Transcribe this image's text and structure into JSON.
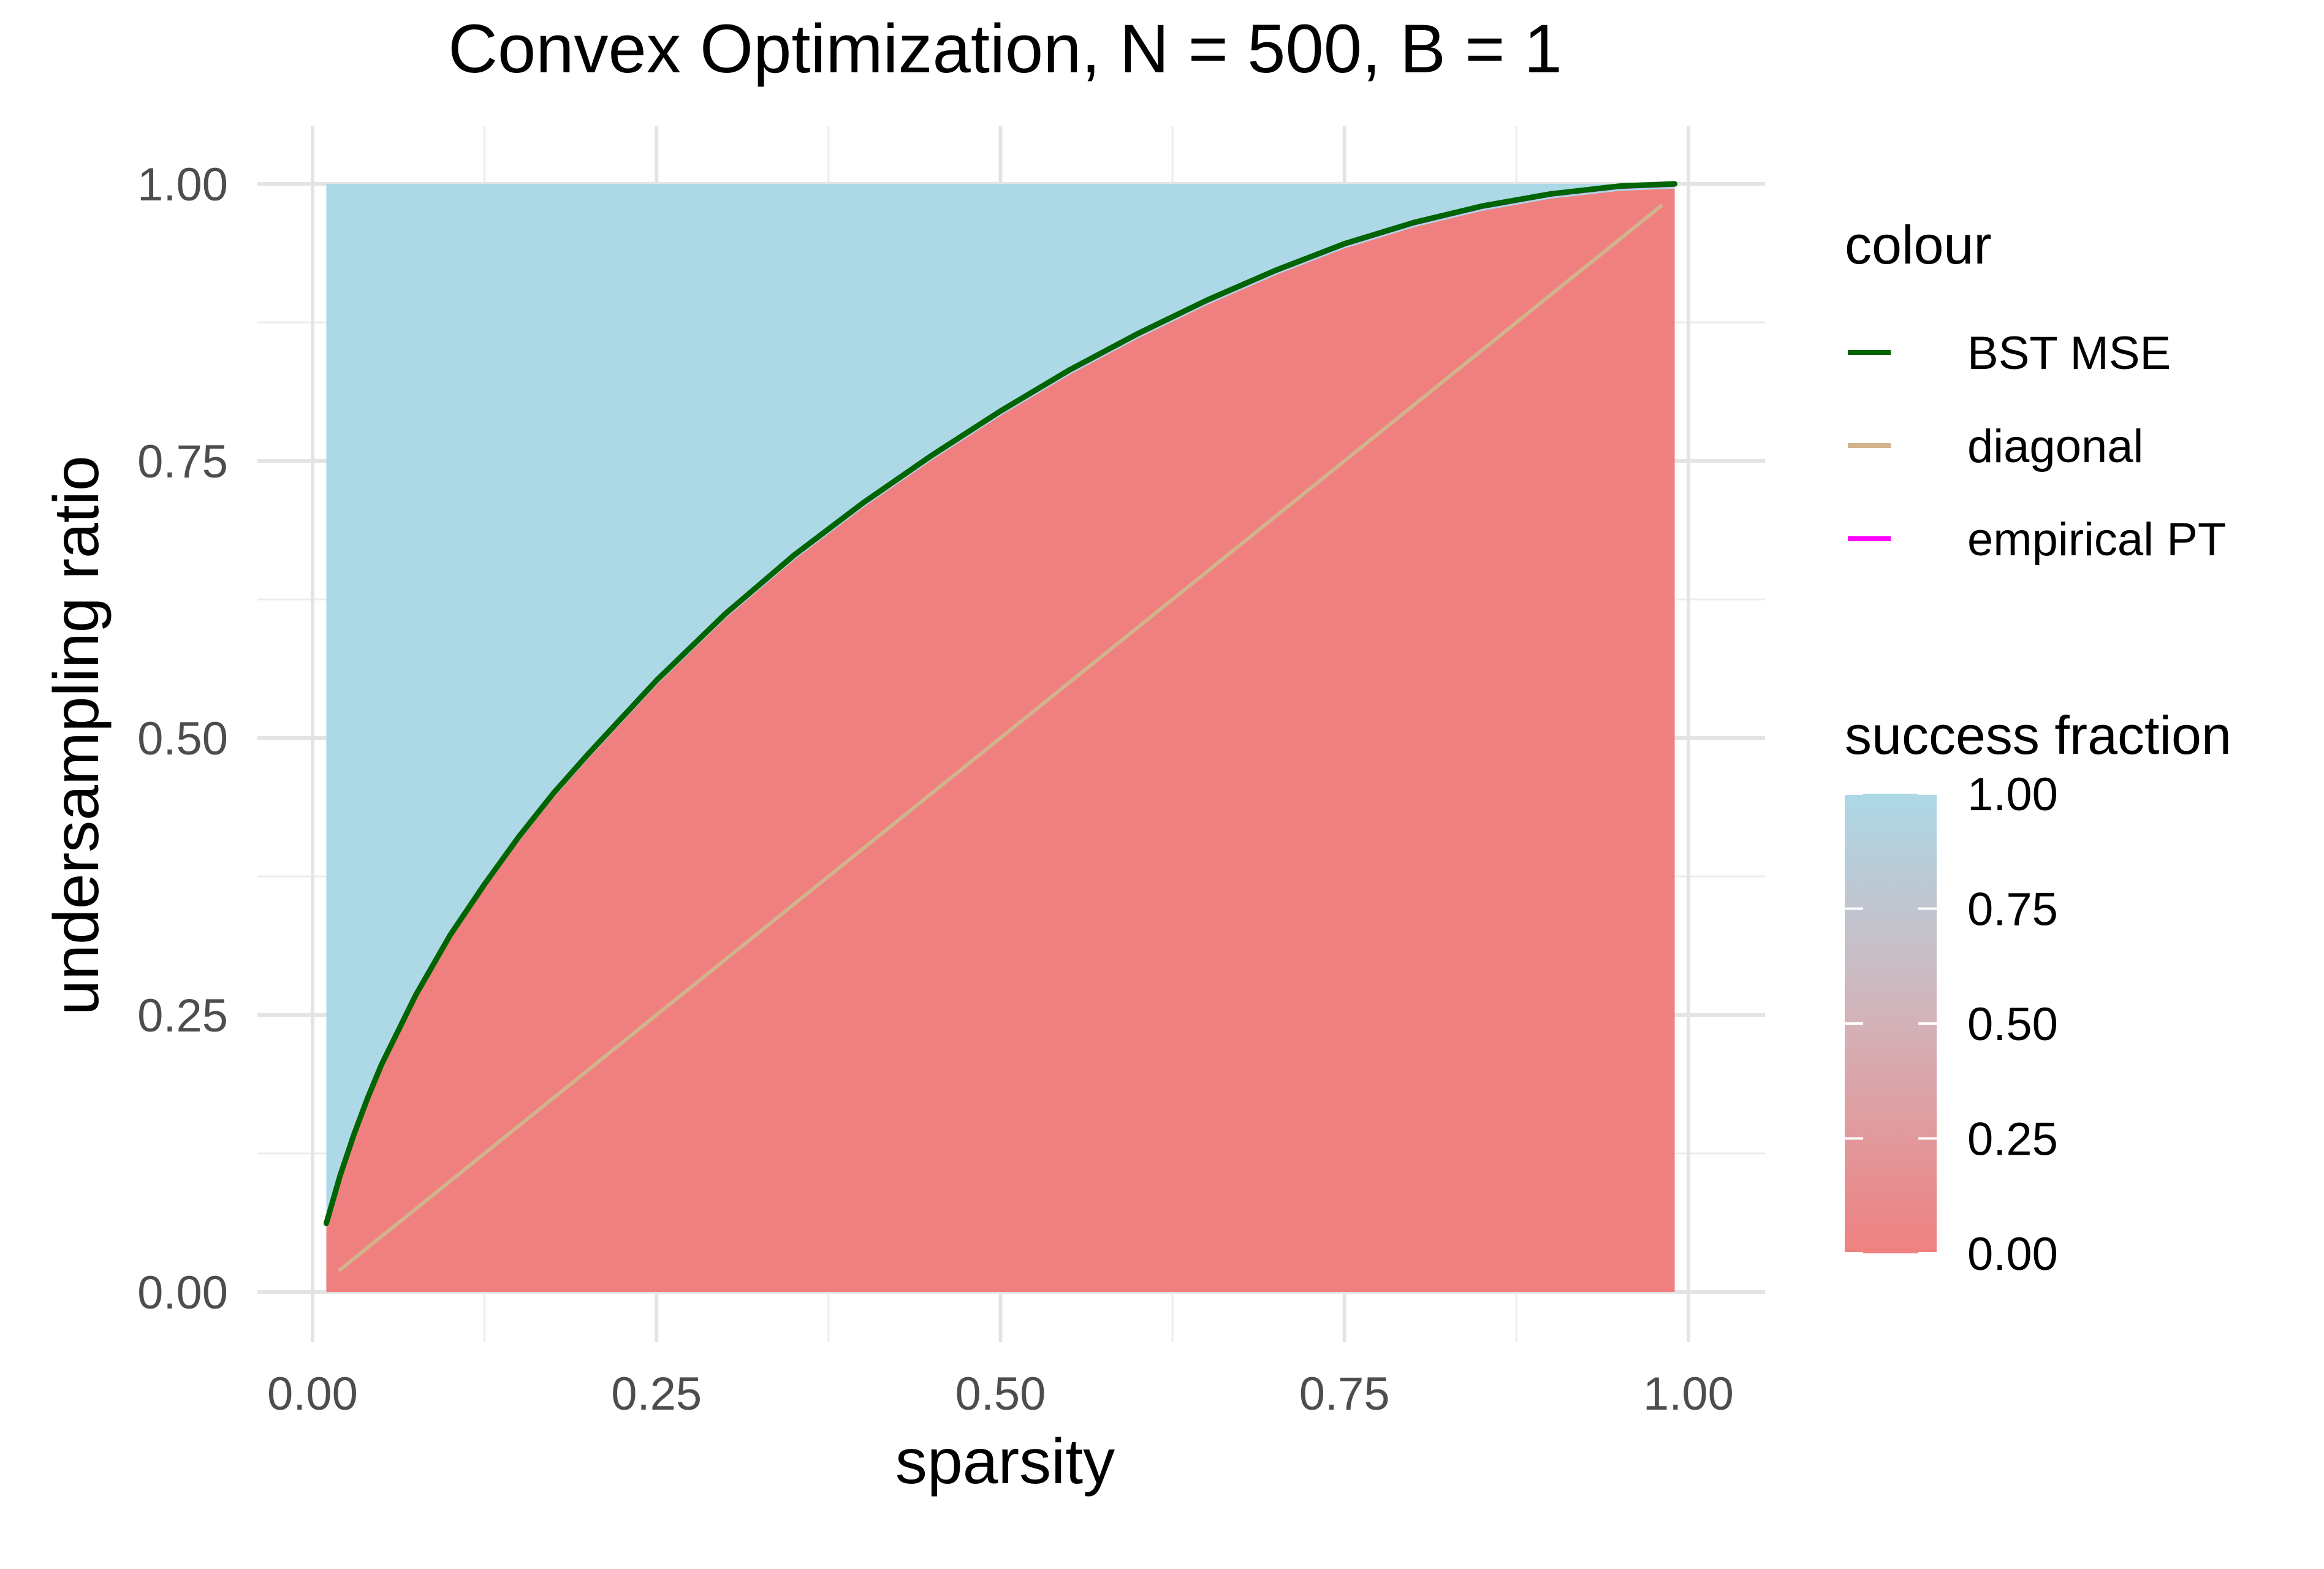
{
  "chart_data": {
    "type": "heatmap",
    "title": "Convex Optimization, N = 500, B = 1",
    "xlabel": "sparsity",
    "ylabel": "undersampling ratio",
    "xlim": [
      0,
      1
    ],
    "ylim": [
      0,
      1
    ],
    "x_ticks": [
      {
        "value": 0.0,
        "label": "0.00"
      },
      {
        "value": 0.25,
        "label": "0.25"
      },
      {
        "value": 0.5,
        "label": "0.50"
      },
      {
        "value": 0.75,
        "label": "0.75"
      },
      {
        "value": 1.0,
        "label": "1.00"
      }
    ],
    "y_ticks": [
      {
        "value": 0.0,
        "label": "0.00"
      },
      {
        "value": 0.25,
        "label": "0.25"
      },
      {
        "value": 0.5,
        "label": "0.50"
      },
      {
        "value": 0.75,
        "label": "0.75"
      },
      {
        "value": 1.0,
        "label": "1.00"
      }
    ],
    "grid": true,
    "legend_position": "right",
    "heatmap": {
      "x_range": [
        0.01,
        0.99
      ],
      "y_range": [
        0.0,
        1.0
      ],
      "low_color": "#F08080",
      "high_color": "#ADD8E6",
      "value_name": "success fraction"
    },
    "series": [
      {
        "name": "BST MSE",
        "color": "#006400",
        "points": [
          [
            0.01,
            0.062
          ],
          [
            0.02,
            0.105
          ],
          [
            0.03,
            0.142
          ],
          [
            0.04,
            0.175
          ],
          [
            0.05,
            0.205
          ],
          [
            0.075,
            0.268
          ],
          [
            0.1,
            0.322
          ],
          [
            0.125,
            0.368
          ],
          [
            0.15,
            0.411
          ],
          [
            0.175,
            0.45
          ],
          [
            0.2,
            0.485
          ],
          [
            0.25,
            0.552
          ],
          [
            0.3,
            0.612
          ],
          [
            0.35,
            0.665
          ],
          [
            0.4,
            0.712
          ],
          [
            0.45,
            0.755
          ],
          [
            0.5,
            0.795
          ],
          [
            0.55,
            0.832
          ],
          [
            0.6,
            0.865
          ],
          [
            0.65,
            0.895
          ],
          [
            0.7,
            0.922
          ],
          [
            0.75,
            0.946
          ],
          [
            0.8,
            0.965
          ],
          [
            0.85,
            0.98
          ],
          [
            0.9,
            0.991
          ],
          [
            0.95,
            0.998
          ],
          [
            0.99,
            1.0
          ]
        ]
      },
      {
        "name": "diagonal",
        "color": "#D2B48C",
        "points": [
          [
            0.02,
            0.02
          ],
          [
            0.98,
            0.98
          ]
        ]
      },
      {
        "name": "empirical PT",
        "color": "#FF00FF",
        "points": [
          [
            0.01,
            0.061
          ],
          [
            0.02,
            0.104
          ],
          [
            0.03,
            0.141
          ],
          [
            0.04,
            0.174
          ],
          [
            0.05,
            0.204
          ],
          [
            0.075,
            0.267
          ],
          [
            0.1,
            0.321
          ],
          [
            0.125,
            0.367
          ],
          [
            0.15,
            0.41
          ],
          [
            0.175,
            0.449
          ],
          [
            0.2,
            0.484
          ],
          [
            0.25,
            0.551
          ],
          [
            0.3,
            0.611
          ],
          [
            0.35,
            0.664
          ],
          [
            0.4,
            0.711
          ],
          [
            0.45,
            0.754
          ],
          [
            0.5,
            0.794
          ],
          [
            0.55,
            0.831
          ],
          [
            0.6,
            0.864
          ],
          [
            0.65,
            0.894
          ],
          [
            0.7,
            0.921
          ],
          [
            0.75,
            0.945
          ],
          [
            0.8,
            0.964
          ],
          [
            0.85,
            0.979
          ],
          [
            0.9,
            0.99
          ],
          [
            0.95,
            0.997
          ],
          [
            0.99,
            0.999
          ]
        ]
      }
    ],
    "legend_colour": {
      "title": "colour",
      "entries": [
        "BST MSE",
        "diagonal",
        "empirical PT"
      ]
    },
    "legend_fill": {
      "title": "success fraction",
      "ticks": [
        {
          "value": 1.0,
          "label": "1.00"
        },
        {
          "value": 0.75,
          "label": "0.75"
        },
        {
          "value": 0.5,
          "label": "0.50"
        },
        {
          "value": 0.25,
          "label": "0.25"
        },
        {
          "value": 0.0,
          "label": "0.00"
        }
      ]
    }
  }
}
